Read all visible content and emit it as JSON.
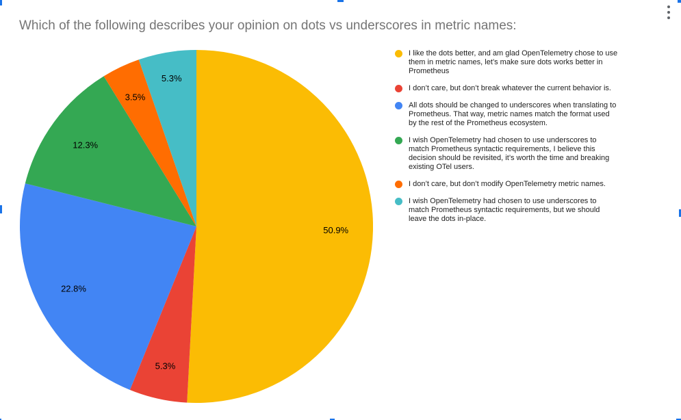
{
  "title": "Which of the following describes your opinion on dots vs underscores in metric names:",
  "icons": {
    "more_options_icon": "vertical-ellipsis"
  },
  "colors": {
    "background": "#FFFFFF",
    "title_text": "#757575",
    "legend_text": "#212121",
    "pie_label_text": "#000000",
    "kebab_icon": "#5F6368",
    "selection_handle": "#1A73E8"
  },
  "chart_data": {
    "type": "pie",
    "title": "Which of the following describes your opinion on dots vs underscores in metric names:",
    "legend_position": "right",
    "start_angle_deg": 0,
    "direction": "clockwise",
    "slices": [
      {
        "legend": "I like the dots better, and am glad OpenTelemetry chose to use\nthem in metric names, let’s make sure dots works better in\nPrometheus",
        "percent": 50.9,
        "percent_label": "50.9%",
        "color": "#FBBC04"
      },
      {
        "legend": "I don’t care, but don’t break whatever the current behavior is.",
        "percent": 5.3,
        "percent_label": "5.3%",
        "color": "#EA4335"
      },
      {
        "legend": "All dots should be changed to underscores when translating to\nPrometheus. That way, metric names match the format used\nby the rest of the Prometheus ecosystem.",
        "percent": 22.8,
        "percent_label": "22.8%",
        "color": "#4285F4"
      },
      {
        "legend": "I wish OpenTelemetry had chosen to use underscores to\nmatch Prometheus syntactic requirements, I believe this\ndecision should be revisited, it’s worth the time and breaking\nexisting OTel users.",
        "percent": 12.3,
        "percent_label": "12.3%",
        "color": "#34A853"
      },
      {
        "legend": "I don’t care, but don’t modify OpenTelemetry metric names.",
        "percent": 3.5,
        "percent_label": "3.5%",
        "color": "#FF6D01"
      },
      {
        "legend": "I wish OpenTelemetry had chosen to use underscores to\nmatch Prometheus syntactic requirements, but we should\nleave the dots in-place.",
        "percent": 5.3,
        "percent_label": "5.3%",
        "color": "#46BDC6"
      }
    ]
  }
}
